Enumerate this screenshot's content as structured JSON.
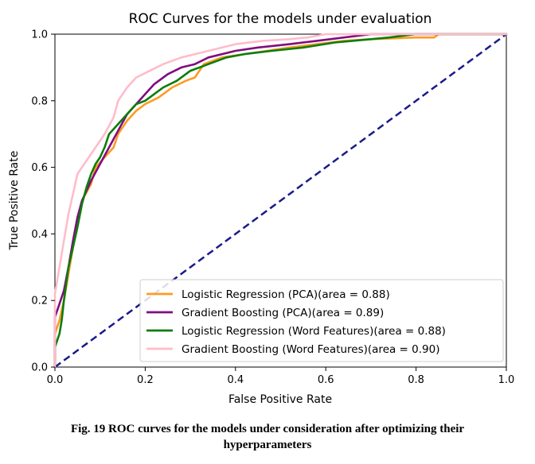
{
  "chart_data": {
    "type": "line",
    "title": "ROC Curves for the models under evaluation",
    "xlabel": "False Positive Rate",
    "ylabel": "True Positive Rate",
    "xlim": [
      0.0,
      1.0
    ],
    "ylim": [
      0.0,
      1.0
    ],
    "xticks": [
      "0.0",
      "0.2",
      "0.4",
      "0.6",
      "0.8",
      "1.0"
    ],
    "yticks": [
      "0.0",
      "0.2",
      "0.4",
      "0.6",
      "0.8",
      "1.0"
    ],
    "grid": false,
    "legend_position": "lower-right",
    "series": [
      {
        "name": "Logistic Regression (PCA)(area = 0.88)",
        "color": "#ff9a22",
        "points": [
          [
            0,
            0
          ],
          [
            0,
            0.1
          ],
          [
            0.01,
            0.14
          ],
          [
            0.02,
            0.2
          ],
          [
            0.03,
            0.28
          ],
          [
            0.04,
            0.36
          ],
          [
            0.05,
            0.44
          ],
          [
            0.06,
            0.5
          ],
          [
            0.08,
            0.55
          ],
          [
            0.09,
            0.6
          ],
          [
            0.11,
            0.63
          ],
          [
            0.13,
            0.66
          ],
          [
            0.14,
            0.7
          ],
          [
            0.16,
            0.74
          ],
          [
            0.18,
            0.77
          ],
          [
            0.2,
            0.79
          ],
          [
            0.23,
            0.81
          ],
          [
            0.26,
            0.84
          ],
          [
            0.29,
            0.86
          ],
          [
            0.31,
            0.87
          ],
          [
            0.33,
            0.91
          ],
          [
            0.37,
            0.93
          ],
          [
            0.42,
            0.94
          ],
          [
            0.47,
            0.95
          ],
          [
            0.52,
            0.96
          ],
          [
            0.58,
            0.97
          ],
          [
            0.64,
            0.98
          ],
          [
            0.7,
            0.985
          ],
          [
            0.8,
            0.99
          ],
          [
            0.84,
            0.99
          ],
          [
            0.85,
            1.0
          ],
          [
            1.0,
            1.0
          ]
        ]
      },
      {
        "name": "Gradient Boosting (PCA)(area = 0.89)",
        "color": "#800d80",
        "points": [
          [
            0,
            0
          ],
          [
            0,
            0.15
          ],
          [
            0.01,
            0.19
          ],
          [
            0.02,
            0.23
          ],
          [
            0.03,
            0.3
          ],
          [
            0.04,
            0.38
          ],
          [
            0.05,
            0.45
          ],
          [
            0.06,
            0.5
          ],
          [
            0.08,
            0.56
          ],
          [
            0.1,
            0.61
          ],
          [
            0.12,
            0.66
          ],
          [
            0.14,
            0.71
          ],
          [
            0.16,
            0.76
          ],
          [
            0.18,
            0.79
          ],
          [
            0.2,
            0.82
          ],
          [
            0.22,
            0.85
          ],
          [
            0.25,
            0.88
          ],
          [
            0.28,
            0.9
          ],
          [
            0.31,
            0.91
          ],
          [
            0.34,
            0.93
          ],
          [
            0.4,
            0.95
          ],
          [
            0.45,
            0.96
          ],
          [
            0.52,
            0.97
          ],
          [
            0.58,
            0.98
          ],
          [
            0.64,
            0.99
          ],
          [
            0.7,
            1.0
          ],
          [
            1.0,
            1.0
          ]
        ]
      },
      {
        "name": "Logistic Regression (Word Features)(area = 0.88)",
        "color": "#0c7d0c",
        "points": [
          [
            0,
            0
          ],
          [
            0,
            0.06
          ],
          [
            0.01,
            0.1
          ],
          [
            0.015,
            0.14
          ],
          [
            0.02,
            0.2
          ],
          [
            0.03,
            0.3
          ],
          [
            0.04,
            0.36
          ],
          [
            0.05,
            0.42
          ],
          [
            0.06,
            0.49
          ],
          [
            0.07,
            0.54
          ],
          [
            0.08,
            0.58
          ],
          [
            0.09,
            0.61
          ],
          [
            0.1,
            0.63
          ],
          [
            0.11,
            0.66
          ],
          [
            0.12,
            0.7
          ],
          [
            0.14,
            0.73
          ],
          [
            0.16,
            0.76
          ],
          [
            0.18,
            0.79
          ],
          [
            0.2,
            0.8
          ],
          [
            0.22,
            0.82
          ],
          [
            0.24,
            0.84
          ],
          [
            0.27,
            0.86
          ],
          [
            0.3,
            0.89
          ],
          [
            0.34,
            0.91
          ],
          [
            0.38,
            0.93
          ],
          [
            0.42,
            0.94
          ],
          [
            0.48,
            0.95
          ],
          [
            0.55,
            0.96
          ],
          [
            0.62,
            0.975
          ],
          [
            0.7,
            0.985
          ],
          [
            0.74,
            0.99
          ],
          [
            0.8,
            1.0
          ],
          [
            1.0,
            1.0
          ]
        ]
      },
      {
        "name": "Gradient Boosting (Word Features)(area = 0.90)",
        "color": "#ffbccb",
        "points": [
          [
            0,
            0
          ],
          [
            0,
            0.22
          ],
          [
            0.01,
            0.3
          ],
          [
            0.02,
            0.38
          ],
          [
            0.03,
            0.46
          ],
          [
            0.04,
            0.52
          ],
          [
            0.05,
            0.58
          ],
          [
            0.07,
            0.62
          ],
          [
            0.09,
            0.66
          ],
          [
            0.11,
            0.7
          ],
          [
            0.13,
            0.75
          ],
          [
            0.14,
            0.8
          ],
          [
            0.16,
            0.84
          ],
          [
            0.18,
            0.87
          ],
          [
            0.21,
            0.89
          ],
          [
            0.24,
            0.91
          ],
          [
            0.28,
            0.93
          ],
          [
            0.34,
            0.95
          ],
          [
            0.4,
            0.97
          ],
          [
            0.46,
            0.98
          ],
          [
            0.52,
            0.985
          ],
          [
            0.56,
            0.99
          ],
          [
            0.6,
            1.0
          ],
          [
            1.0,
            1.0
          ]
        ]
      }
    ],
    "baseline": {
      "style": "dashed",
      "color": "#1a1a8c",
      "points": [
        [
          0,
          0
        ],
        [
          1,
          1
        ]
      ]
    }
  },
  "caption": {
    "line1": "Fig. 19 ROC curves for the models under consideration after optimizing their",
    "line2": "hyperparameters"
  }
}
